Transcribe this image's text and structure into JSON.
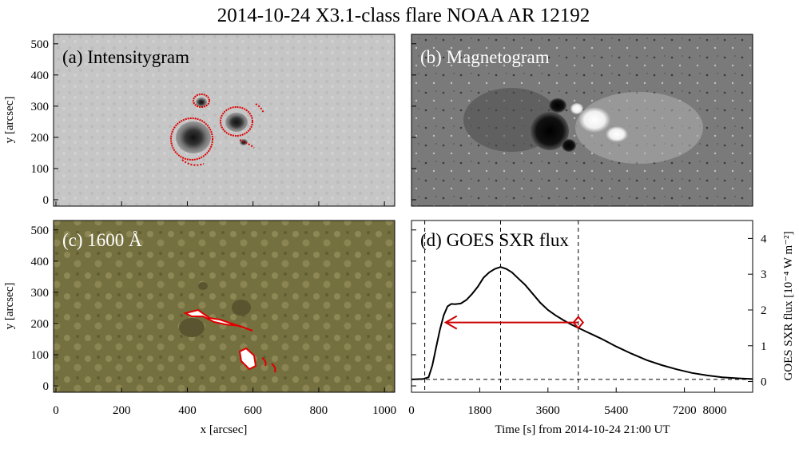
{
  "title": "2014-10-24 X3.1-class flare NOAA AR 12192",
  "panels": {
    "a": {
      "label": "(a) Intensitygram",
      "label_color": "#000000"
    },
    "b": {
      "label": "(b) Magnetogram",
      "label_color": "#ffffff"
    },
    "c": {
      "label": "(c) 1600 Å",
      "label_color": "#ffffff"
    },
    "d": {
      "label": "(d) GOES SXR flux",
      "label_color": "#000000"
    }
  },
  "image_axes": {
    "ylabel": "y [arcsec]",
    "xlabel": "x [arcsec]",
    "xticks": [
      "0",
      "200",
      "400",
      "600",
      "800",
      "1000"
    ],
    "yticks": [
      "0",
      "100",
      "200",
      "300",
      "400",
      "500"
    ]
  },
  "colors": {
    "intensity_bg": "#c6c6c6",
    "magnetogram_bg": "#7a7a7a",
    "aia1600_bg": "#75703f",
    "contour": "#e00000",
    "arrow": "#cc0000"
  },
  "chart_data": {
    "type": "line",
    "title": "(d) GOES SXR flux",
    "xlabel": "Time [s] from 2014-10-24 21:00 UT",
    "ylabel": "GOES SXR flux [10⁻⁴ W m⁻²]",
    "xticks": [
      "0",
      "1800",
      "3600",
      "5400",
      "7200",
      "8000"
    ],
    "yticks": [
      "0",
      "1",
      "2",
      "3",
      "4"
    ],
    "xlim": [
      0,
      9000
    ],
    "ylim": [
      -0.3,
      4.5
    ],
    "x": [
      0,
      300,
      450,
      550,
      650,
      750,
      850,
      950,
      1050,
      1150,
      1300,
      1450,
      1600,
      1750,
      1900,
      2050,
      2200,
      2350,
      2500,
      2650,
      2800,
      3000,
      3200,
      3400,
      3600,
      3800,
      4000,
      4200,
      4400,
      4600,
      4800,
      5000,
      5400,
      5800,
      6200,
      6600,
      7000,
      7400,
      7800,
      8200,
      8600,
      9000
    ],
    "y": [
      0.06,
      0.07,
      0.12,
      0.45,
      0.95,
      1.45,
      1.85,
      2.1,
      2.17,
      2.16,
      2.18,
      2.28,
      2.45,
      2.65,
      2.9,
      3.05,
      3.15,
      3.2,
      3.15,
      3.05,
      2.9,
      2.7,
      2.45,
      2.2,
      2.0,
      1.85,
      1.72,
      1.6,
      1.5,
      1.4,
      1.3,
      1.2,
      0.98,
      0.78,
      0.6,
      0.46,
      0.34,
      0.24,
      0.17,
      0.12,
      0.09,
      0.07
    ],
    "vlines_x": [
      350,
      2350,
      4400
    ],
    "hline_y": 0.06,
    "arrow": {
      "x_start": 900,
      "x_end": 4400,
      "y": 1.65
    }
  }
}
